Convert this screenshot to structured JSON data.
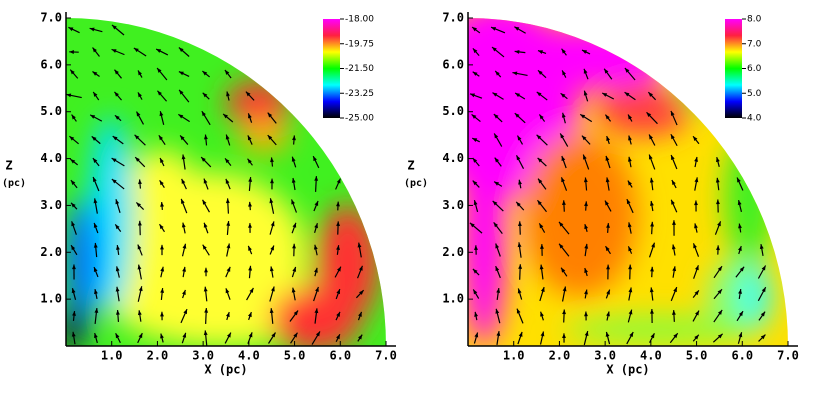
{
  "chart_data": [
    {
      "type": "heatmap",
      "xlabel": "X (pc)",
      "ylabel": "Z",
      "ylabel_unit": "(pc)",
      "xlim": [
        0,
        7
      ],
      "ylim": [
        0,
        7
      ],
      "xticks": [
        {
          "value": 1,
          "label": "1.0"
        },
        {
          "value": 2,
          "label": "2.0"
        },
        {
          "value": 3,
          "label": "3.0"
        },
        {
          "value": 4,
          "label": "4.0"
        },
        {
          "value": 5,
          "label": "5.0"
        },
        {
          "value": 6,
          "label": "6.0"
        },
        {
          "value": 7,
          "label": "7.0"
        }
      ],
      "yticks": [
        {
          "value": 1,
          "label": "1.0"
        },
        {
          "value": 2,
          "label": "2.0"
        },
        {
          "value": 3,
          "label": "3.0"
        },
        {
          "value": 4,
          "label": "4.0"
        },
        {
          "value": 5,
          "label": "5.0"
        },
        {
          "value": 6,
          "label": "6.0"
        },
        {
          "value": 7,
          "label": "7.0"
        }
      ],
      "colorbar": {
        "lim": [
          -25,
          -18
        ],
        "ticks": [
          {
            "value": -18,
            "label": "-18.00"
          },
          {
            "value": -19.75,
            "label": "-19.75"
          },
          {
            "value": -21.5,
            "label": "-21.50"
          },
          {
            "value": -23.25,
            "label": "-23.25"
          },
          {
            "value": -25,
            "label": "-25.00"
          }
        ],
        "colors": [
          "#ff00ff",
          "#ff2040",
          "#ffff00",
          "#00ff00",
          "#00ffff",
          "#0000ff",
          "#000000"
        ]
      }
    },
    {
      "type": "heatmap",
      "xlabel": "X (pc)",
      "ylabel": "Z",
      "ylabel_unit": "(pc)",
      "xlim": [
        0,
        7
      ],
      "ylim": [
        0,
        7
      ],
      "xticks": [
        {
          "value": 1,
          "label": "1.0"
        },
        {
          "value": 2,
          "label": "2.0"
        },
        {
          "value": 3,
          "label": "3.0"
        },
        {
          "value": 4,
          "label": "4.0"
        },
        {
          "value": 5,
          "label": "5.0"
        },
        {
          "value": 6,
          "label": "6.0"
        },
        {
          "value": 7,
          "label": "7.0"
        }
      ],
      "yticks": [
        {
          "value": 1,
          "label": "1.0"
        },
        {
          "value": 2,
          "label": "2.0"
        },
        {
          "value": 3,
          "label": "3.0"
        },
        {
          "value": 4,
          "label": "4.0"
        },
        {
          "value": 5,
          "label": "5.0"
        },
        {
          "value": 6,
          "label": "6.0"
        },
        {
          "value": 7,
          "label": "7.0"
        }
      ],
      "colorbar": {
        "lim": [
          4,
          8
        ],
        "ticks": [
          {
            "value": 8,
            "label": "8.0"
          },
          {
            "value": 7,
            "label": "7.0"
          },
          {
            "value": 6,
            "label": "6.0"
          },
          {
            "value": 5,
            "label": "5.0"
          },
          {
            "value": 4,
            "label": "4.0"
          }
        ],
        "colors": [
          "#ff00ff",
          "#ff2040",
          "#ffff00",
          "#00ff00",
          "#00ffff",
          "#0000ff",
          "#000000"
        ]
      }
    }
  ]
}
